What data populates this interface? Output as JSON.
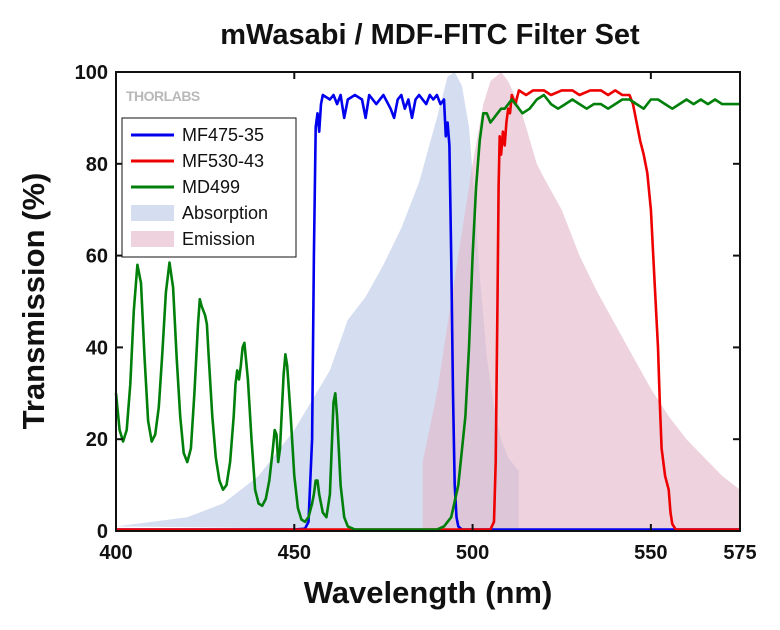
{
  "chart_data": {
    "type": "line",
    "title": "mWasabi / MDF-FITC Filter Set",
    "xlabel": "Wavelength (nm)",
    "ylabel": "Transmission (%)",
    "xlim": [
      400,
      575
    ],
    "ylim": [
      0,
      100
    ],
    "x_ticks": [
      400,
      450,
      500,
      550,
      575
    ],
    "y_ticks": [
      0,
      20,
      40,
      60,
      80,
      100
    ],
    "grid": false,
    "legend_position": "upper-left",
    "logo": "THORLABS",
    "series": [
      {
        "name": "MF475-35",
        "kind": "line",
        "color": "#0000ee",
        "points": [
          [
            400,
            0.3
          ],
          [
            450,
            0.3
          ],
          [
            453,
            0.5
          ],
          [
            454,
            2
          ],
          [
            455,
            20
          ],
          [
            455.5,
            60
          ],
          [
            456,
            88
          ],
          [
            456.5,
            91
          ],
          [
            457,
            87
          ],
          [
            457.5,
            93
          ],
          [
            458,
            95
          ],
          [
            460,
            94
          ],
          [
            461,
            95
          ],
          [
            462,
            93
          ],
          [
            463,
            95
          ],
          [
            464,
            90
          ],
          [
            465,
            94
          ],
          [
            467,
            95
          ],
          [
            469,
            94
          ],
          [
            470,
            90
          ],
          [
            471,
            95
          ],
          [
            473,
            93
          ],
          [
            475,
            95
          ],
          [
            477,
            92
          ],
          [
            478,
            90
          ],
          [
            479,
            94
          ],
          [
            480,
            95
          ],
          [
            481,
            92
          ],
          [
            482,
            94
          ],
          [
            483,
            90
          ],
          [
            484,
            94
          ],
          [
            485,
            95
          ],
          [
            487,
            93
          ],
          [
            488,
            95
          ],
          [
            489,
            94
          ],
          [
            490,
            95
          ],
          [
            491,
            93
          ],
          [
            492,
            94
          ],
          [
            492.5,
            86
          ],
          [
            493,
            89
          ],
          [
            493.5,
            84
          ],
          [
            494,
            60
          ],
          [
            494.5,
            30
          ],
          [
            495,
            10
          ],
          [
            495.5,
            3
          ],
          [
            496,
            1
          ],
          [
            497,
            0.3
          ],
          [
            575,
            0.3
          ]
        ]
      },
      {
        "name": "MF530-43",
        "kind": "line",
        "color": "#ee0000",
        "points": [
          [
            400,
            0.3
          ],
          [
            505,
            0.3
          ],
          [
            506,
            2
          ],
          [
            506.5,
            15
          ],
          [
            507,
            50
          ],
          [
            507.3,
            75
          ],
          [
            507.6,
            86
          ],
          [
            508,
            82
          ],
          [
            508.5,
            87
          ],
          [
            509,
            84
          ],
          [
            509.5,
            89
          ],
          [
            510,
            92
          ],
          [
            510.5,
            91
          ],
          [
            511,
            95
          ],
          [
            512,
            93
          ],
          [
            513,
            96
          ],
          [
            515,
            95
          ],
          [
            517,
            96
          ],
          [
            520,
            96
          ],
          [
            522,
            95
          ],
          [
            525,
            96
          ],
          [
            528,
            96
          ],
          [
            530,
            95
          ],
          [
            533,
            96
          ],
          [
            536,
            96
          ],
          [
            538,
            95
          ],
          [
            540,
            96
          ],
          [
            542,
            95
          ],
          [
            544,
            95
          ],
          [
            545,
            93
          ],
          [
            546,
            89
          ],
          [
            547,
            85
          ],
          [
            548,
            82
          ],
          [
            549,
            78
          ],
          [
            550,
            70
          ],
          [
            551,
            55
          ],
          [
            552,
            40
          ],
          [
            552.5,
            28
          ],
          [
            553,
            18
          ],
          [
            554,
            12
          ],
          [
            555,
            9
          ],
          [
            555.5,
            4
          ],
          [
            556,
            1.5
          ],
          [
            557,
            0.3
          ],
          [
            575,
            0.3
          ]
        ]
      },
      {
        "name": "MD499",
        "kind": "line",
        "color": "#00800a",
        "points": [
          [
            400,
            30
          ],
          [
            401,
            22
          ],
          [
            402,
            19.5
          ],
          [
            403,
            22
          ],
          [
            404,
            32
          ],
          [
            405,
            48
          ],
          [
            406,
            58
          ],
          [
            407,
            54
          ],
          [
            408,
            38
          ],
          [
            409,
            24
          ],
          [
            410,
            19.5
          ],
          [
            411,
            21
          ],
          [
            412,
            27
          ],
          [
            413,
            39
          ],
          [
            414,
            52
          ],
          [
            415,
            58.5
          ],
          [
            416,
            53
          ],
          [
            417,
            38
          ],
          [
            418,
            25
          ],
          [
            419,
            17
          ],
          [
            420,
            15
          ],
          [
            421,
            18
          ],
          [
            422,
            30
          ],
          [
            423,
            45
          ],
          [
            423.5,
            50.5
          ],
          [
            424,
            49
          ],
          [
            425,
            47
          ],
          [
            425.5,
            45
          ],
          [
            426,
            38
          ],
          [
            427,
            25
          ],
          [
            428,
            16
          ],
          [
            429,
            11
          ],
          [
            430,
            9
          ],
          [
            431,
            10
          ],
          [
            432,
            15
          ],
          [
            433,
            25
          ],
          [
            433.5,
            32
          ],
          [
            434,
            35
          ],
          [
            434.5,
            33
          ],
          [
            435,
            36
          ],
          [
            435.5,
            40
          ],
          [
            436,
            41
          ],
          [
            437,
            33
          ],
          [
            438,
            20
          ],
          [
            439,
            9
          ],
          [
            440,
            6
          ],
          [
            441,
            5.5
          ],
          [
            442,
            7
          ],
          [
            443,
            11
          ],
          [
            444,
            18
          ],
          [
            444.5,
            22
          ],
          [
            445,
            21
          ],
          [
            445.5,
            15
          ],
          [
            446,
            18
          ],
          [
            446.5,
            26
          ],
          [
            447,
            34
          ],
          [
            447.5,
            38.5
          ],
          [
            448,
            36
          ],
          [
            449,
            25
          ],
          [
            450,
            12
          ],
          [
            451,
            5
          ],
          [
            452,
            2.5
          ],
          [
            453,
            2
          ],
          [
            454,
            3
          ],
          [
            455,
            6
          ],
          [
            455.5,
            8
          ],
          [
            456,
            11
          ],
          [
            456.5,
            11
          ],
          [
            457,
            8
          ],
          [
            458,
            4
          ],
          [
            459,
            3
          ],
          [
            460,
            8
          ],
          [
            460.5,
            18
          ],
          [
            461,
            28
          ],
          [
            461.5,
            30
          ],
          [
            462,
            25
          ],
          [
            463,
            10
          ],
          [
            464,
            3
          ],
          [
            465,
            1
          ],
          [
            467,
            0.3
          ],
          [
            490,
            0.3
          ],
          [
            492,
            1
          ],
          [
            494,
            3
          ],
          [
            496,
            10
          ],
          [
            498,
            25
          ],
          [
            499,
            40
          ],
          [
            500,
            60
          ],
          [
            501,
            75
          ],
          [
            502,
            85
          ],
          [
            503,
            91
          ],
          [
            504,
            91
          ],
          [
            505,
            89
          ],
          [
            506,
            90
          ],
          [
            507,
            91
          ],
          [
            508,
            92
          ],
          [
            509,
            92
          ],
          [
            510,
            93
          ],
          [
            511,
            94
          ],
          [
            512,
            93
          ],
          [
            514,
            91
          ],
          [
            516,
            92
          ],
          [
            518,
            94
          ],
          [
            520,
            95
          ],
          [
            522,
            93
          ],
          [
            524,
            92
          ],
          [
            526,
            93
          ],
          [
            528,
            94
          ],
          [
            530,
            93
          ],
          [
            532,
            92
          ],
          [
            534,
            93
          ],
          [
            536,
            93
          ],
          [
            538,
            92
          ],
          [
            540,
            93
          ],
          [
            542,
            94
          ],
          [
            544,
            94
          ],
          [
            546,
            93
          ],
          [
            548,
            92
          ],
          [
            550,
            94
          ],
          [
            552,
            94
          ],
          [
            554,
            93
          ],
          [
            556,
            92
          ],
          [
            558,
            93
          ],
          [
            560,
            94
          ],
          [
            562,
            93
          ],
          [
            564,
            94
          ],
          [
            566,
            93
          ],
          [
            568,
            94
          ],
          [
            570,
            93
          ],
          [
            572,
            93
          ],
          [
            575,
            93
          ]
        ]
      },
      {
        "name": "Absorption",
        "kind": "area",
        "color": "#bcc8e6",
        "points": [
          [
            400,
            1
          ],
          [
            420,
            3
          ],
          [
            430,
            6
          ],
          [
            440,
            12
          ],
          [
            450,
            22
          ],
          [
            460,
            35
          ],
          [
            465,
            46
          ],
          [
            470,
            51
          ],
          [
            475,
            58
          ],
          [
            480,
            66
          ],
          [
            485,
            76
          ],
          [
            490,
            90
          ],
          [
            493,
            99
          ],
          [
            495,
            100
          ],
          [
            497,
            97
          ],
          [
            499,
            88
          ],
          [
            500,
            78
          ],
          [
            502,
            56
          ],
          [
            504,
            38
          ],
          [
            506,
            27
          ],
          [
            508,
            20
          ],
          [
            510,
            16
          ],
          [
            512,
            14
          ],
          [
            513,
            13
          ],
          [
            513,
            0
          ]
        ]
      },
      {
        "name": "Emission",
        "kind": "area",
        "color": "#e3b8cc",
        "points": [
          [
            486,
            0
          ],
          [
            486,
            15
          ],
          [
            490,
            30
          ],
          [
            495,
            55
          ],
          [
            500,
            80
          ],
          [
            503,
            93
          ],
          [
            505,
            98
          ],
          [
            508,
            100
          ],
          [
            510,
            98
          ],
          [
            513,
            93
          ],
          [
            515,
            88
          ],
          [
            518,
            80
          ],
          [
            520,
            77
          ],
          [
            525,
            70
          ],
          [
            530,
            60
          ],
          [
            535,
            52
          ],
          [
            540,
            45
          ],
          [
            545,
            38
          ],
          [
            550,
            31
          ],
          [
            555,
            25
          ],
          [
            560,
            20
          ],
          [
            565,
            16
          ],
          [
            570,
            12
          ],
          [
            575,
            9
          ],
          [
            575,
            0
          ]
        ]
      }
    ]
  }
}
